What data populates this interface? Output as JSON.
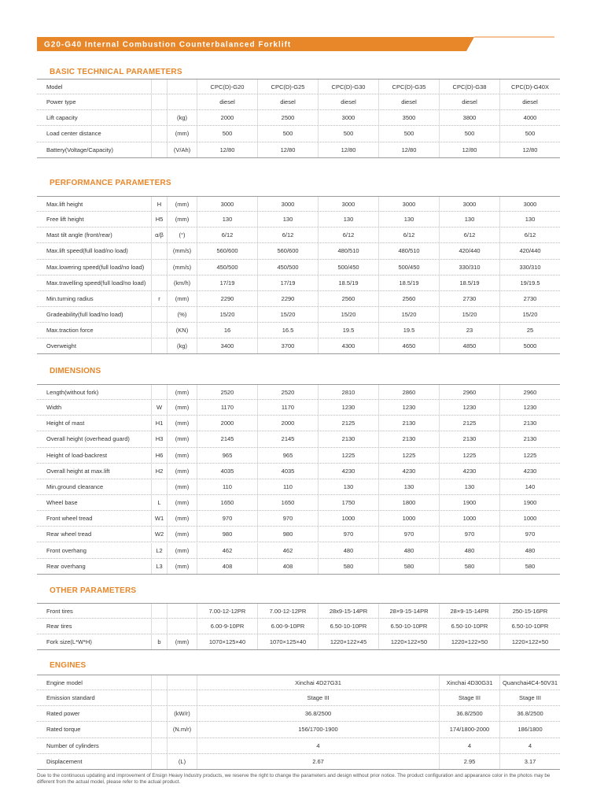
{
  "header": {
    "title": "G20-G40 Internal Combustion Counterbalanced Forklift"
  },
  "sections": [
    {
      "title": "BASIC TECHNICAL PARAMETERS",
      "rows": [
        [
          "Model",
          null,
          null,
          "CPC(D)-G20",
          "CPC(D)-G25",
          "CPC(D)-G30",
          "CPC(D)-G35",
          "CPC(D)-G38",
          "CPC(D)-G40X"
        ],
        [
          "Power type",
          null,
          null,
          "diesel",
          "diesel",
          "diesel",
          "diesel",
          "diesel",
          "diesel"
        ],
        [
          "Lift capacity",
          null,
          "(kg)",
          "2000",
          "2500",
          "3000",
          "3500",
          "3800",
          "4000"
        ],
        [
          "Load center distance",
          null,
          "(mm)",
          "500",
          "500",
          "500",
          "500",
          "500",
          "500"
        ],
        [
          "Battery(Voltage/Capacity)",
          null,
          "(V/Ah)",
          "12/80",
          "12/80",
          "12/80",
          "12/80",
          "12/80",
          "12/80"
        ]
      ]
    },
    {
      "title": "PERFORMANCE PARAMETERS",
      "rows": [
        [
          "Max.lift height",
          "H",
          "(mm)",
          "3000",
          "3000",
          "3000",
          "3000",
          "3000",
          "3000"
        ],
        [
          "Free lift height",
          "H5",
          "(mm)",
          "130",
          "130",
          "130",
          "130",
          "130",
          "130"
        ],
        [
          "Mast tilt angle (front/rear)",
          "α/β",
          "(°)",
          "6/12",
          "6/12",
          "6/12",
          "6/12",
          "6/12",
          "6/12"
        ],
        [
          "Max.lift speed(full load/no load)",
          null,
          "(mm/s)",
          "560/600",
          "560/600",
          "480/510",
          "480/510",
          "420/440",
          "420/440"
        ],
        [
          "Max.lowering speed(full load/no load)",
          null,
          "(mm/s)",
          "450/500",
          "450/500",
          "500/450",
          "500/450",
          "330/310",
          "330/310"
        ],
        [
          "Max.travelling speed(full load/no load)",
          null,
          "(km/h)",
          "17/19",
          "17/19",
          "18.5/19",
          "18.5/19",
          "18.5/19",
          "19/19.5"
        ],
        [
          "Min.turning radius",
          "r",
          "(mm)",
          "2290",
          "2290",
          "2560",
          "2560",
          "2730",
          "2730"
        ],
        [
          "Gradeability(full load/no load)",
          null,
          "(%)",
          "15/20",
          "15/20",
          "15/20",
          "15/20",
          "15/20",
          "15/20"
        ],
        [
          "Max.traction force",
          null,
          "(KN)",
          "16",
          "16.5",
          "19.5",
          "19.5",
          "23",
          "25"
        ],
        [
          "Overweight",
          null,
          "(kg)",
          "3400",
          "3700",
          "4300",
          "4650",
          "4850",
          "5000"
        ]
      ]
    },
    {
      "title": "DIMENSIONS",
      "rows": [
        [
          "Length(without fork)",
          null,
          "(mm)",
          "2520",
          "2520",
          "2810",
          "2860",
          "2960",
          "2960"
        ],
        [
          "Width",
          "W",
          "(mm)",
          "1170",
          "1170",
          "1230",
          "1230",
          "1230",
          "1230"
        ],
        [
          "Height of mast",
          "H1",
          "(mm)",
          "2000",
          "2000",
          "2125",
          "2130",
          "2125",
          "2130"
        ],
        [
          "Overall height (overhead guard)",
          "H3",
          "(mm)",
          "2145",
          "2145",
          "2130",
          "2130",
          "2130",
          "2130"
        ],
        [
          "Height of load-backrest",
          "H6",
          "(mm)",
          "965",
          "965",
          "1225",
          "1225",
          "1225",
          "1225"
        ],
        [
          "Overall height at max.lift",
          "H2",
          "(mm)",
          "4035",
          "4035",
          "4230",
          "4230",
          "4230",
          "4230"
        ],
        [
          "Min.ground clearance",
          null,
          "(mm)",
          "110",
          "110",
          "130",
          "130",
          "130",
          "140"
        ],
        [
          "Wheel base",
          "L",
          "(mm)",
          "1650",
          "1650",
          "1750",
          "1800",
          "1900",
          "1900"
        ],
        [
          "Front wheel tread",
          "W1",
          "(mm)",
          "970",
          "970",
          "1000",
          "1000",
          "1000",
          "1000"
        ],
        [
          "Rear wheel tread",
          "W2",
          "(mm)",
          "980",
          "980",
          "970",
          "970",
          "970",
          "970"
        ],
        [
          "Front overhang",
          "L2",
          "(mm)",
          "462",
          "462",
          "480",
          "480",
          "480",
          "480"
        ],
        [
          "Rear overhang",
          "L3",
          "(mm)",
          "408",
          "408",
          "580",
          "580",
          "580",
          "580"
        ]
      ]
    },
    {
      "title": "OTHER PARAMETERS",
      "rows": [
        [
          "Front tires",
          null,
          null,
          "7.00-12-12PR",
          "7.00-12-12PR",
          "28x9-15-14PR",
          "28×9-15-14PR",
          "28×9-15-14PR",
          "250-15-16PR"
        ],
        [
          "Rear tires",
          null,
          null,
          "6.00-9-10PR",
          "6.00-9-10PR",
          "6.50-10-10PR",
          "6.50-10-10PR",
          "6.50-10-10PR",
          "6.50-10-10PR"
        ],
        [
          "Fork size(L*W*H)",
          "b",
          "(mm)",
          "1070×125×40",
          "1070×125×40",
          "1220×122×45",
          "1220×122×50",
          "1220×122×50",
          "1220×122×50"
        ]
      ]
    },
    {
      "title": "ENGINES",
      "rows": [
        [
          "Engine model",
          null,
          null,
          "Xinchai 4D27G31",
          "Xinchai 4D30G31",
          "Quanchai4C4-50V31"
        ],
        [
          "Emission standard",
          null,
          null,
          "Stage III",
          "Stage III",
          "Stage III"
        ],
        [
          "Rated power",
          null,
          "(kW/r)",
          "36.8/2500",
          "36.8/2500",
          "36.8/2500"
        ],
        [
          "Rated torque",
          null,
          "(N.m/r)",
          "156/1700-1900",
          "174/1800-2000",
          "186/1800"
        ],
        [
          "Number of cylinders",
          null,
          null,
          "4",
          "4",
          "4"
        ],
        [
          "Displacement",
          null,
          "(L)",
          "2.67",
          "2.95",
          "3.17"
        ]
      ]
    }
  ],
  "footer": {
    "note": "Due to the continuous updating and improvement of Ensign Heavy Industry products, we reserve the right to change the parameters and design without prior notice. The product configuration and appearance color in the photos may be different from the actual model, please refer to the actual product."
  }
}
